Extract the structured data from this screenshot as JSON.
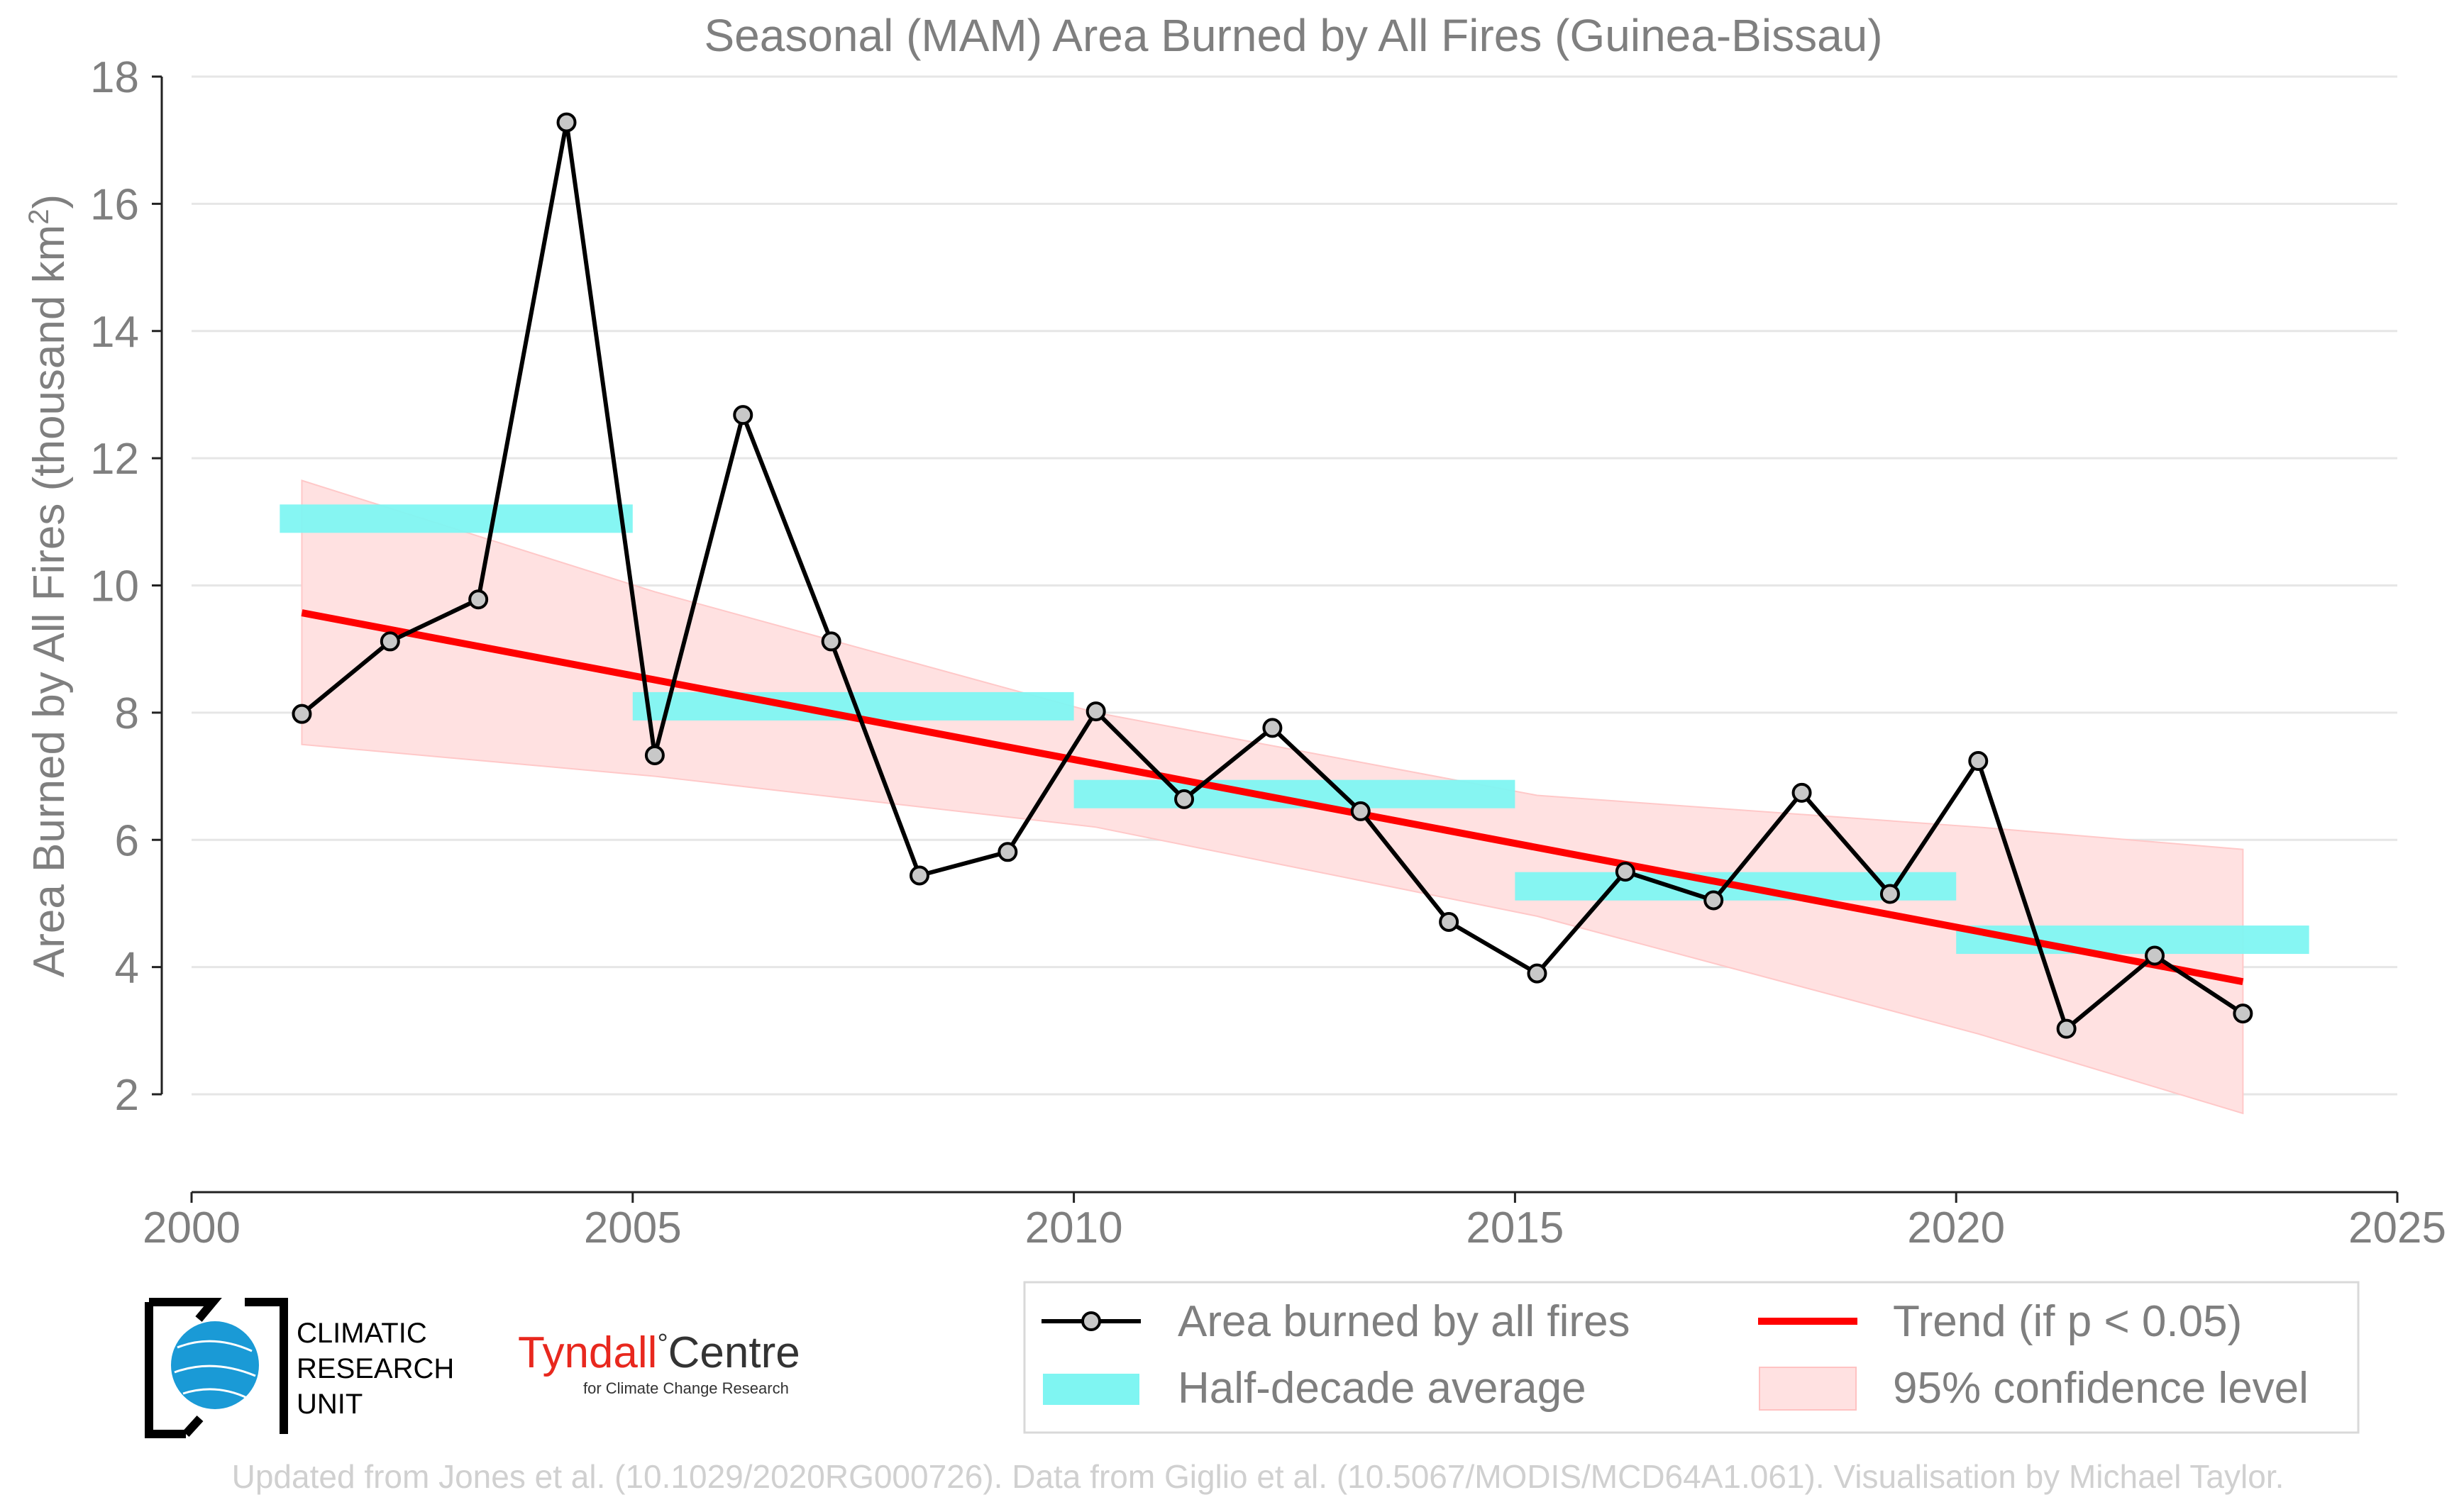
{
  "chart_data": {
    "type": "line",
    "title": "Seasonal (MAM) Area Burned by All Fires (Guinea-Bissau)",
    "ylabel": "Area Burned by All Fires (thousand km",
    "ylabel_superscript": "2",
    "ylabel_suffix": ")",
    "xlabel": "",
    "xlim": [
      2000,
      2025
    ],
    "ylim": [
      1.5,
      18
    ],
    "xticks": [
      2000,
      2005,
      2010,
      2015,
      2020,
      2025
    ],
    "yticks": [
      2,
      4,
      6,
      8,
      10,
      12,
      14,
      16,
      18
    ],
    "grid": true,
    "series": [
      {
        "name": "Area burned by all fires",
        "color": "#000000",
        "marker_color": "#c8c8c8",
        "x": [
          2001.25,
          2002.25,
          2003.25,
          2004.25,
          2005.25,
          2006.25,
          2007.25,
          2008.25,
          2009.25,
          2010.25,
          2011.25,
          2012.25,
          2013.25,
          2014.25,
          2015.25,
          2016.25,
          2017.25,
          2018.25,
          2019.25,
          2020.25,
          2021.25,
          2022.25,
          2023.25
        ],
        "y": [
          7.98,
          9.12,
          9.78,
          17.28,
          7.33,
          12.68,
          9.12,
          5.44,
          5.81,
          8.02,
          6.64,
          7.76,
          6.45,
          4.71,
          3.9,
          5.5,
          5.05,
          6.74,
          5.15,
          7.24,
          3.03,
          4.18,
          3.27
        ]
      }
    ],
    "half_decade_average": {
      "name": "Half-decade average",
      "color": "#7ff5f2",
      "segments": [
        {
          "x0": 2001,
          "x1": 2005,
          "y": 11.05
        },
        {
          "x0": 2005,
          "x1": 2010,
          "y": 8.1
        },
        {
          "x0": 2010,
          "x1": 2015,
          "y": 6.72
        },
        {
          "x0": 2015,
          "x1": 2020,
          "y": 5.27
        },
        {
          "x0": 2020,
          "x1": 2024,
          "y": 4.43
        }
      ]
    },
    "trend": {
      "name": "Trend (if p < 0.05)",
      "color": "#ff0000",
      "x": [
        2001.25,
        2023.25
      ],
      "y": [
        9.57,
        3.77
      ]
    },
    "confidence_band": {
      "name": "95% confidence level",
      "color": "#ffcfcf",
      "x": [
        2001.25,
        2005.25,
        2010.25,
        2015.25,
        2020.25,
        2023.25
      ],
      "lower": [
        7.5,
        7.0,
        6.2,
        4.8,
        2.95,
        1.7
      ],
      "upper": [
        11.65,
        9.9,
        8.0,
        6.7,
        6.2,
        5.85
      ]
    },
    "legend_placement": "bottom-right"
  },
  "legend": {
    "line_label": "Area burned by all fires",
    "band_avg_label": "Half-decade average",
    "trend_label": "Trend (if p < 0.05)",
    "ci_label": "95% confidence level"
  },
  "logos": {
    "cru_line1": "CLIMATIC",
    "cru_line2": "RESEARCH",
    "cru_line3": "UNIT",
    "tyndall_main": "Tyndall",
    "tyndall_degree": "°",
    "tyndall_centre": "Centre",
    "tyndall_sub": "for Climate Change Research",
    "tyndall_color": "#e8281e"
  },
  "footer": "Updated from Jones et al. (10.1029/2020RG000726). Data from Giglio et al. (10.5067/MODIS/MCD64A1.061). Visualisation by Michael Taylor."
}
